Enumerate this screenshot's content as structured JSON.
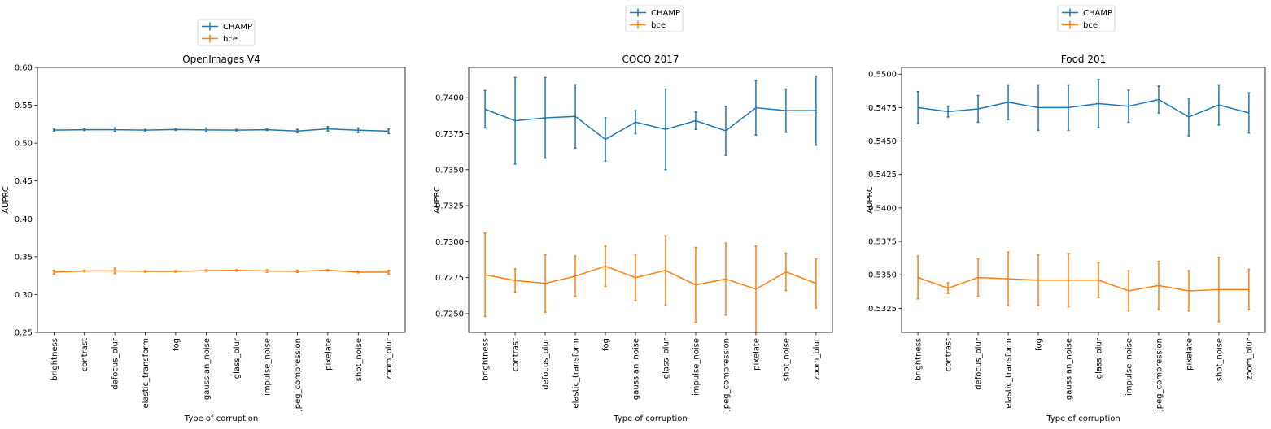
{
  "colors": {
    "champ": "#1f77b4",
    "bce": "#ff7f0e",
    "axis": "#000000",
    "background": "#ffffff"
  },
  "chart_data": [
    {
      "type": "line",
      "title": "OpenImages V4",
      "xlabel": "Type of corruption",
      "ylabel": "AUPRC",
      "ylim": [
        0.25,
        0.6
      ],
      "yticks": [
        0.25,
        0.3,
        0.35,
        0.4,
        0.45,
        0.5,
        0.55,
        0.6
      ],
      "ytick_labels": [
        "0.25",
        "0.30",
        "0.35",
        "0.40",
        "0.45",
        "0.50",
        "0.55",
        "0.60"
      ],
      "categories": [
        "brightness",
        "contrast",
        "defocus_blur",
        "elastic_transform",
        "fog",
        "gaussian_noise",
        "glass_blur",
        "impulse_noise",
        "jpeg_compression",
        "pixelate",
        "shot_noise",
        "zoom_blur"
      ],
      "legend": {
        "entries": [
          "CHAMP",
          "bce"
        ],
        "placement": "above"
      },
      "series": [
        {
          "name": "CHAMP",
          "values": [
            0.5172,
            0.5178,
            0.5178,
            0.5172,
            0.518,
            0.5175,
            0.5172,
            0.5178,
            0.516,
            0.5188,
            0.517,
            0.5158
          ],
          "errors": [
            0.0012,
            0.0012,
            0.0025,
            0.001,
            0.001,
            0.0025,
            0.001,
            0.001,
            0.0022,
            0.003,
            0.003,
            0.003
          ]
        },
        {
          "name": "bce",
          "values": [
            0.3295,
            0.331,
            0.3312,
            0.3305,
            0.3305,
            0.3315,
            0.3318,
            0.331,
            0.3305,
            0.332,
            0.3295,
            0.3295
          ],
          "errors": [
            0.0025,
            0.001,
            0.0035,
            0.001,
            0.001,
            0.001,
            0.001,
            0.0015,
            0.0015,
            0.001,
            0.001,
            0.0025
          ]
        }
      ]
    },
    {
      "type": "line",
      "title": "COCO 2017",
      "xlabel": "Type of corruption",
      "ylabel": "AUPRC",
      "ylim": [
        0.7237,
        0.7421
      ],
      "yticks": [
        0.725,
        0.7275,
        0.73,
        0.7325,
        0.735,
        0.7375,
        0.74
      ],
      "ytick_labels": [
        "0.7250",
        "0.7275",
        "0.7300",
        "0.7325",
        "0.7350",
        "0.7375",
        "0.7400"
      ],
      "categories": [
        "brightness",
        "contrast",
        "defocus_blur",
        "elastic_transform",
        "fog",
        "gaussian_noise",
        "glass_blur",
        "impulse_noise",
        "jpeg_compression",
        "pixelate",
        "shot_noise",
        "zoom_blur"
      ],
      "legend": {
        "entries": [
          "CHAMP",
          "bce"
        ],
        "placement": "above"
      },
      "series": [
        {
          "name": "CHAMP",
          "values": [
            0.7392,
            0.7384,
            0.7386,
            0.7387,
            0.7371,
            0.7383,
            0.7378,
            0.7384,
            0.7377,
            0.7393,
            0.7391,
            0.7391
          ],
          "errors": [
            0.0013,
            0.003,
            0.0028,
            0.0022,
            0.0015,
            0.0008,
            0.0028,
            0.0006,
            0.0017,
            0.0019,
            0.0015,
            0.0024
          ]
        },
        {
          "name": "bce",
          "values": [
            0.7277,
            0.7273,
            0.7271,
            0.7276,
            0.7283,
            0.7275,
            0.728,
            0.727,
            0.7274,
            0.7267,
            0.7279,
            0.7271
          ],
          "errors": [
            0.0029,
            0.0008,
            0.002,
            0.0014,
            0.0014,
            0.0016,
            0.0024,
            0.0026,
            0.0025,
            0.003,
            0.0013,
            0.0017
          ]
        }
      ]
    },
    {
      "type": "line",
      "title": "Food 201",
      "xlabel": "Type of corruption",
      "ylabel": "AUPRC",
      "ylim": [
        0.5307,
        0.5505
      ],
      "yticks": [
        0.5325,
        0.535,
        0.5375,
        0.54,
        0.5425,
        0.545,
        0.5475,
        0.55
      ],
      "ytick_labels": [
        "0.5325",
        "0.5350",
        "0.5375",
        "0.5400",
        "0.5425",
        "0.5450",
        "0.5475",
        "0.5500"
      ],
      "categories": [
        "brightness",
        "contrast",
        "defocus_blur",
        "elastic_transform",
        "fog",
        "gaussian_noise",
        "glass_blur",
        "impulse_noise",
        "jpeg_compression",
        "pixelate",
        "shot_noise",
        "zoom_blur"
      ],
      "legend": {
        "entries": [
          "CHAMP",
          "bce"
        ],
        "placement": "above"
      },
      "series": [
        {
          "name": "CHAMP",
          "values": [
            0.5475,
            0.5472,
            0.5474,
            0.5479,
            0.5475,
            0.5475,
            0.5478,
            0.5476,
            0.5481,
            0.5468,
            0.5477,
            0.5471
          ],
          "errors": [
            0.0012,
            0.0004,
            0.001,
            0.0013,
            0.0017,
            0.0017,
            0.0018,
            0.0012,
            0.001,
            0.0014,
            0.0015,
            0.0015
          ]
        },
        {
          "name": "bce",
          "values": [
            0.5348,
            0.534,
            0.5348,
            0.5347,
            0.5346,
            0.5346,
            0.5346,
            0.5338,
            0.5342,
            0.5338,
            0.5339,
            0.5339
          ],
          "errors": [
            0.0016,
            0.0004,
            0.0014,
            0.002,
            0.0019,
            0.002,
            0.0013,
            0.0015,
            0.0018,
            0.0015,
            0.0024,
            0.0015
          ]
        }
      ]
    }
  ]
}
